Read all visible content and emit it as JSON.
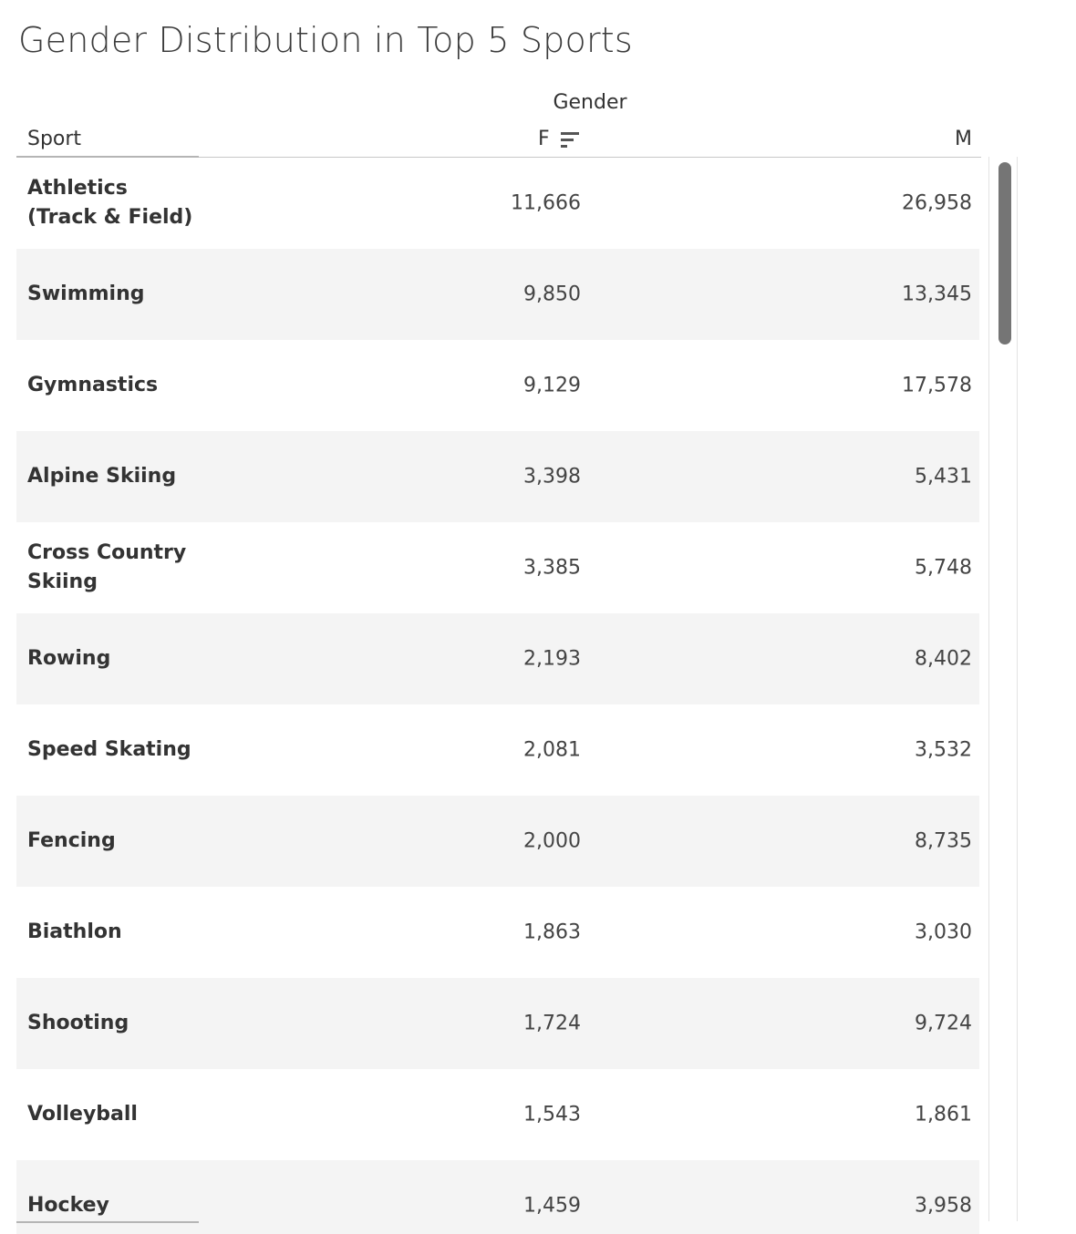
{
  "title": "Gender Distribution in Top 5 Sports",
  "chart_data": {
    "type": "table",
    "title": "Gender Distribution in Top 5 Sports",
    "row_header": "Sport",
    "column_group": "Gender",
    "columns": [
      "F",
      "M"
    ],
    "sorted_by": "F",
    "sort_order": "descending",
    "rows": [
      {
        "sport": "Athletics (Track & Field)",
        "F": "11,666",
        "M": "26,958"
      },
      {
        "sport": "Swimming",
        "F": "9,850",
        "M": "13,345"
      },
      {
        "sport": "Gymnastics",
        "F": "9,129",
        "M": "17,578"
      },
      {
        "sport": "Alpine Skiing",
        "F": "3,398",
        "M": "5,431"
      },
      {
        "sport": "Cross Country Skiing",
        "F": "3,385",
        "M": "5,748"
      },
      {
        "sport": "Rowing",
        "F": "2,193",
        "M": "8,402"
      },
      {
        "sport": "Speed Skating",
        "F": "2,081",
        "M": "3,532"
      },
      {
        "sport": "Fencing",
        "F": "2,000",
        "M": "8,735"
      },
      {
        "sport": "Biathlon",
        "F": "1,863",
        "M": "3,030"
      },
      {
        "sport": "Shooting",
        "F": "1,724",
        "M": "9,724"
      },
      {
        "sport": "Volleyball",
        "F": "1,543",
        "M": "1,861"
      },
      {
        "sport": "Hockey",
        "F": "1,459",
        "M": "3,958"
      }
    ]
  },
  "colors": {
    "row_alt": "#f4f4f4",
    "scroll_thumb": "#757575"
  },
  "icons": {
    "sort": "sort-descending-icon"
  }
}
